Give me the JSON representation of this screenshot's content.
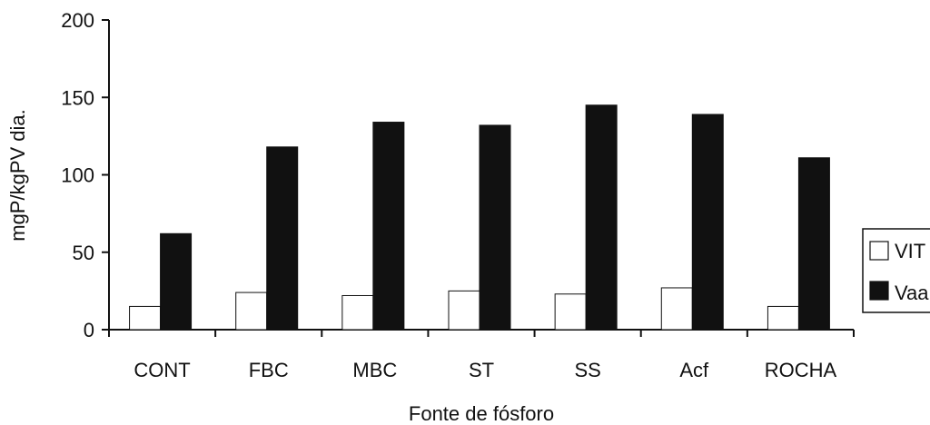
{
  "chart_data": {
    "type": "bar",
    "categories": [
      "CONT",
      "FBC",
      "MBC",
      "ST",
      "SS",
      "Acf",
      "ROCHA"
    ],
    "series": [
      {
        "name": "VIT",
        "color": "#ffffff",
        "stroke": "#111111",
        "values": [
          15,
          24,
          22,
          25,
          23,
          27,
          15
        ]
      },
      {
        "name": "Vaa",
        "color": "#111111",
        "stroke": "#111111",
        "values": [
          62,
          118,
          134,
          132,
          145,
          139,
          111
        ]
      }
    ],
    "title": "",
    "xlabel": "Fonte de fósforo",
    "ylabel": "mgP/kgPV dia.",
    "ylim": [
      0,
      200
    ],
    "yticks": [
      0,
      50,
      100,
      150,
      200
    ],
    "grid": false,
    "legend_position": "right"
  }
}
